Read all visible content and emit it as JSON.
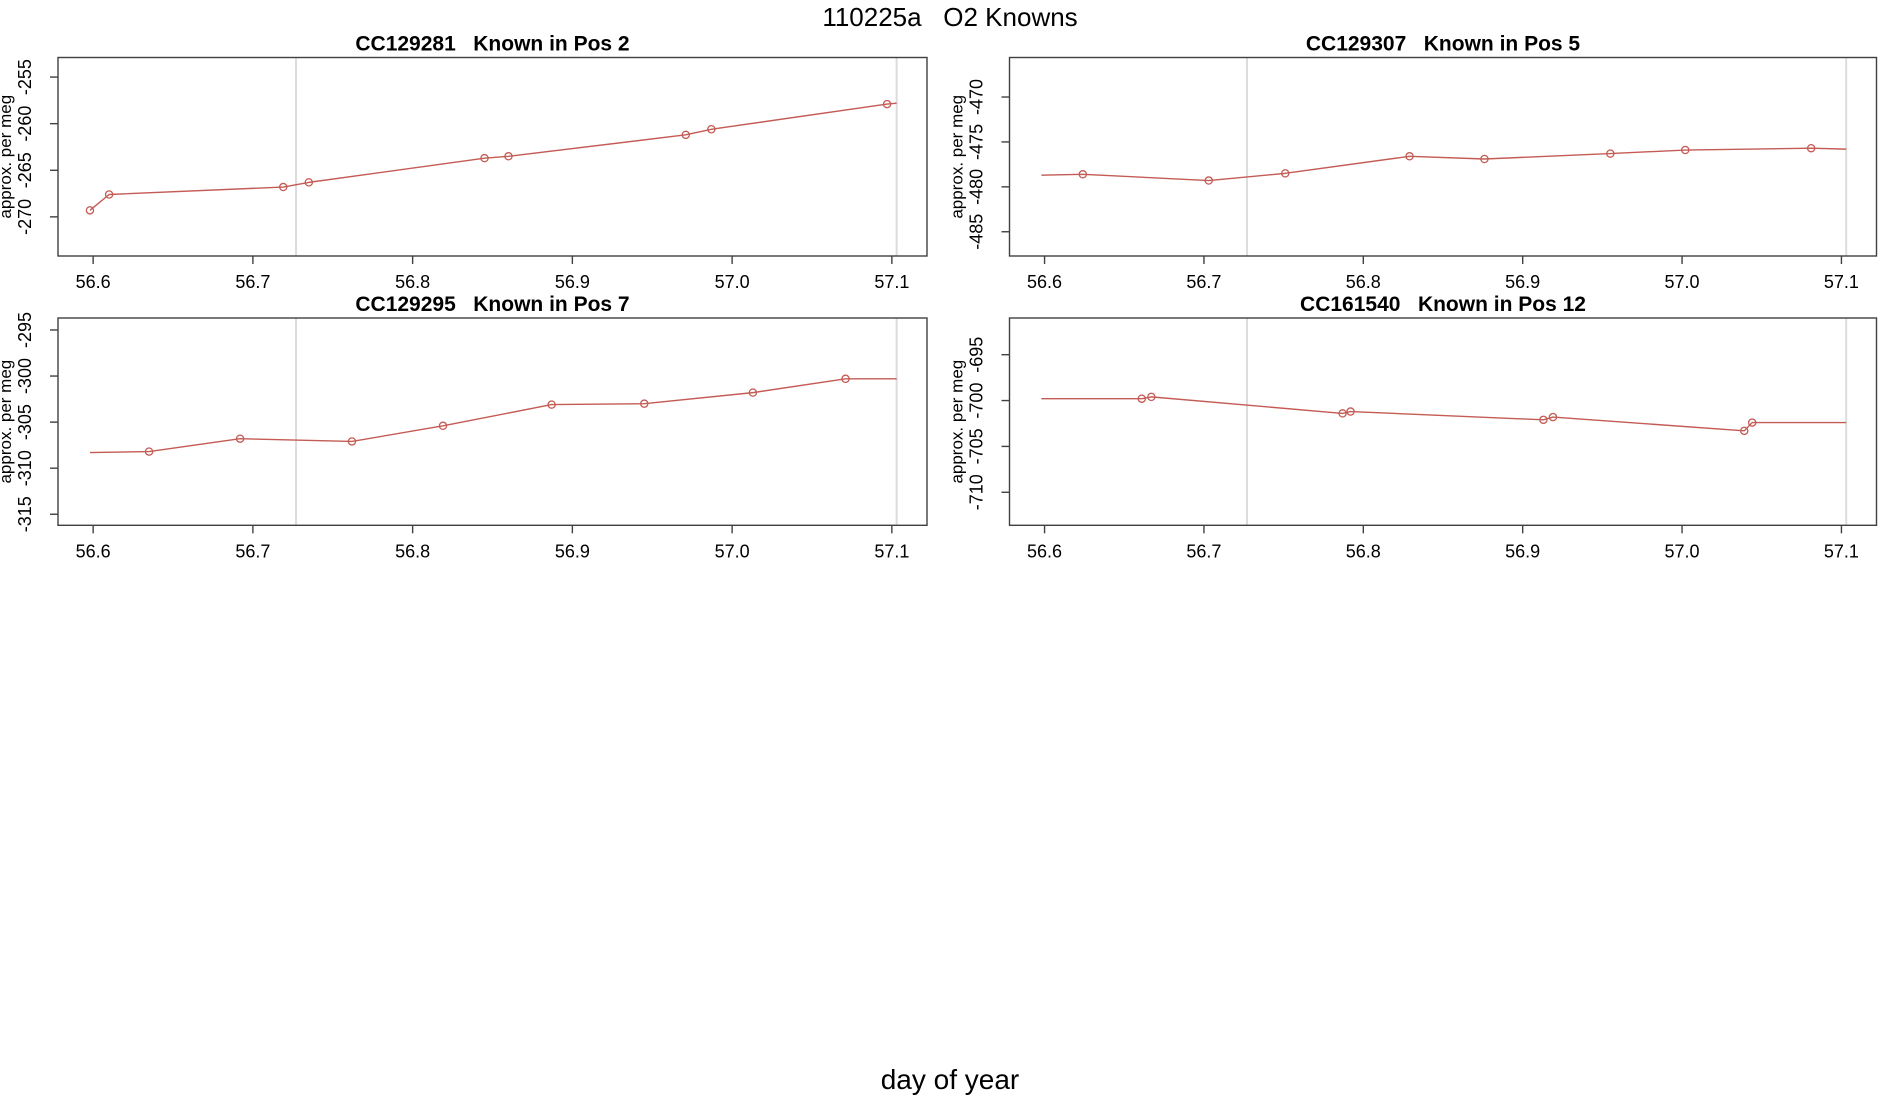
{
  "figure": {
    "title": "110225a   O2 Knowns",
    "xlabel": "day of year",
    "background": "#ffffff"
  },
  "colors": {
    "series": "#c45b55",
    "reference_line": "#dcdcdc",
    "axis": "#404040",
    "text": "#000000"
  },
  "marker": {
    "shape": "open-circle",
    "radius": 3.6
  },
  "chart_data": [
    {
      "type": "line",
      "title": "CC129281   Known in Pos 2",
      "ylabel": "approx. per meg",
      "xlim": [
        56.578,
        57.122
      ],
      "ylim": [
        -274.2,
        -252.9
      ],
      "x_tick_values": [
        56.6,
        56.7,
        56.8,
        56.9,
        57.0,
        57.1
      ],
      "x_tick_labels": [
        "56.6",
        "56.7",
        "56.8",
        "56.9",
        "57.0",
        "57.1"
      ],
      "y_tick_values": [
        -270,
        -265,
        -260,
        -255
      ],
      "y_tick_labels": [
        "-270",
        "-265",
        "-260",
        "-255"
      ],
      "reference_x": [
        56.727,
        57.103
      ],
      "grid": false,
      "legend": "none",
      "markers_x": [
        56.598,
        56.61,
        56.719,
        56.735,
        56.845,
        56.86,
        56.971,
        56.987,
        57.097
      ],
      "markers_y": [
        -269.3,
        -267.6,
        -266.8,
        -266.3,
        -263.7,
        -263.5,
        -261.2,
        -260.6,
        -257.9
      ],
      "line_x": [
        56.598,
        56.61,
        56.719,
        56.735,
        56.845,
        56.86,
        56.971,
        56.987,
        57.097,
        57.103
      ],
      "line_y": [
        -269.3,
        -267.6,
        -266.8,
        -266.3,
        -263.7,
        -263.5,
        -261.2,
        -260.6,
        -257.9,
        -257.8
      ]
    },
    {
      "type": "line",
      "title": "CC129307   Known in Pos 5",
      "ylabel": "approx. per meg",
      "xlim": [
        56.578,
        57.122
      ],
      "ylim": [
        -487.7,
        -465.6
      ],
      "x_tick_values": [
        56.6,
        56.7,
        56.8,
        56.9,
        57.0,
        57.1
      ],
      "x_tick_labels": [
        "56.6",
        "56.7",
        "56.8",
        "56.9",
        "57.0",
        "57.1"
      ],
      "y_tick_values": [
        -485,
        -480,
        -475,
        -470
      ],
      "y_tick_labels": [
        "-485",
        "-480",
        "-475",
        "-470"
      ],
      "reference_x": [
        56.727,
        57.103
      ],
      "grid": false,
      "legend": "none",
      "markers_x": [
        56.624,
        56.703,
        56.751,
        56.829,
        56.876,
        56.955,
        57.002,
        57.081
      ],
      "markers_y": [
        -478.6,
        -479.3,
        -478.5,
        -476.6,
        -476.9,
        -476.3,
        -475.9,
        -475.7
      ],
      "line_x": [
        56.598,
        56.624,
        56.703,
        56.751,
        56.829,
        56.876,
        56.955,
        57.002,
        57.081,
        57.103
      ],
      "line_y": [
        -478.7,
        -478.6,
        -479.3,
        -478.5,
        -476.6,
        -476.9,
        -476.3,
        -475.9,
        -475.7,
        -475.8
      ]
    },
    {
      "type": "line",
      "title": "CC129295   Known in Pos 7",
      "ylabel": "approx. per meg",
      "xlim": [
        56.578,
        57.122
      ],
      "ylim": [
        -316.2,
        -293.7
      ],
      "x_tick_values": [
        56.6,
        56.7,
        56.8,
        56.9,
        57.0,
        57.1
      ],
      "x_tick_labels": [
        "56.6",
        "56.7",
        "56.8",
        "56.9",
        "57.0",
        "57.1"
      ],
      "y_tick_values": [
        -315,
        -310,
        -305,
        -300,
        -295
      ],
      "y_tick_labels": [
        "-315",
        "-310",
        "-305",
        "-300",
        "-295"
      ],
      "reference_x": [
        56.727,
        57.103
      ],
      "grid": false,
      "legend": "none",
      "markers_x": [
        56.635,
        56.692,
        56.762,
        56.819,
        56.887,
        56.945,
        57.013,
        57.071
      ],
      "markers_y": [
        -308.2,
        -306.8,
        -307.1,
        -305.4,
        -303.1,
        -303.0,
        -301.8,
        -300.3
      ],
      "line_x": [
        56.598,
        56.635,
        56.692,
        56.762,
        56.819,
        56.887,
        56.945,
        57.013,
        57.071,
        57.103
      ],
      "line_y": [
        -308.3,
        -308.2,
        -306.8,
        -307.1,
        -305.4,
        -303.1,
        -303.0,
        -301.8,
        -300.3,
        -300.3
      ]
    },
    {
      "type": "line",
      "title": "CC161540   Known in Pos 12",
      "ylabel": "approx. per meg",
      "xlim": [
        56.578,
        57.122
      ],
      "ylim": [
        -713.6,
        -691.0
      ],
      "x_tick_values": [
        56.6,
        56.7,
        56.8,
        56.9,
        57.0,
        57.1
      ],
      "x_tick_labels": [
        "56.6",
        "56.7",
        "56.8",
        "56.9",
        "57.0",
        "57.1"
      ],
      "y_tick_values": [
        -710,
        -705,
        -700,
        -695
      ],
      "y_tick_labels": [
        "-710",
        "-705",
        "-700",
        "-695"
      ],
      "reference_x": [
        56.727,
        57.103
      ],
      "grid": false,
      "legend": "none",
      "markers_x": [
        56.661,
        56.667,
        56.787,
        56.792,
        56.913,
        56.919,
        57.039,
        57.044
      ],
      "markers_y": [
        -699.8,
        -699.6,
        -701.4,
        -701.2,
        -702.1,
        -701.8,
        -703.3,
        -702.4
      ],
      "line_x": [
        56.598,
        56.661,
        56.667,
        56.787,
        56.792,
        56.913,
        56.919,
        57.039,
        57.044,
        57.103
      ],
      "line_y": [
        -699.8,
        -699.8,
        -699.6,
        -701.4,
        -701.2,
        -702.1,
        -701.8,
        -703.3,
        -702.4,
        -702.4
      ]
    }
  ]
}
